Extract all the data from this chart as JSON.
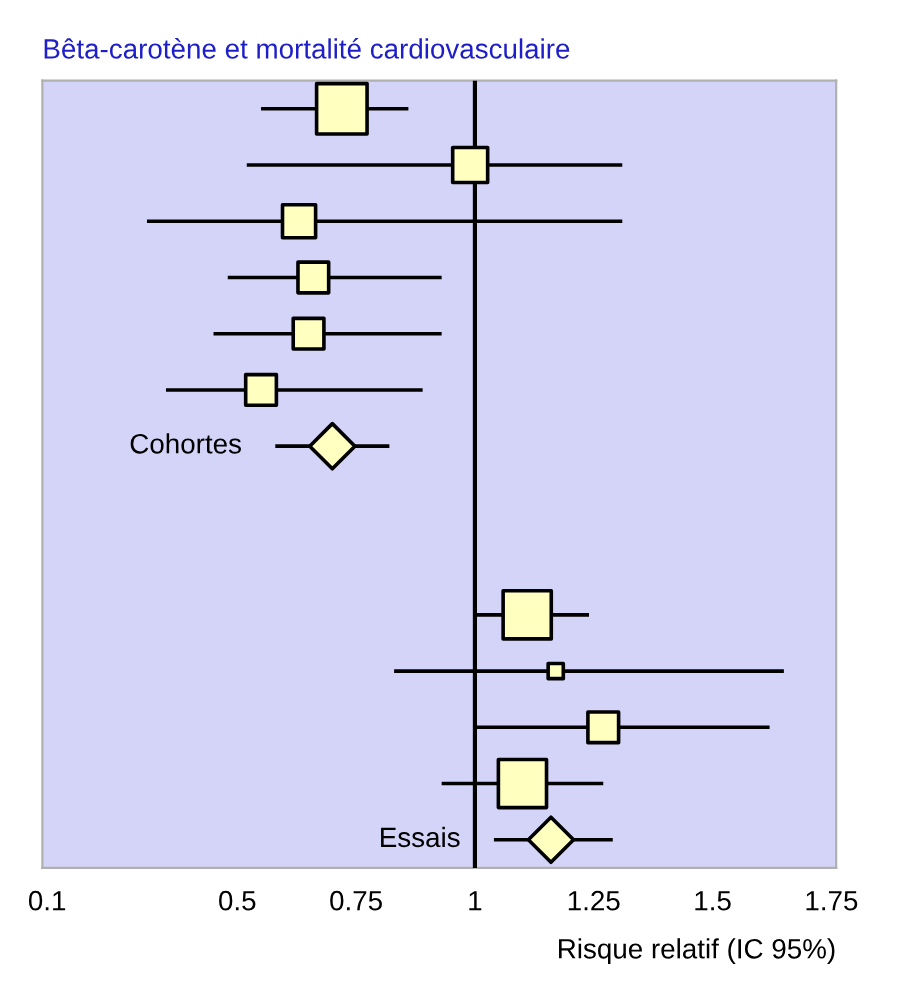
{
  "chart_data": {
    "type": "bubble",
    "orientation": "horizontal",
    "title": "Bêta-carotène et mortalité cardiovasculaire",
    "xlabel": "Risque relatif (IC 95%)",
    "categories": [
      null,
      null,
      null,
      null,
      null,
      null,
      null,
      null,
      null,
      null,
      null,
      null,
      null,
      null
    ],
    "series": [
      {
        "marker": "square",
        "color": "#ffffc0",
        "values": [
          0.72,
          0.99,
          0.63,
          0.66,
          0.65,
          0.55,
          null,
          null,
          null,
          1.11,
          1.17,
          1.27,
          1.1,
          null
        ],
        "sizes": [
          1,
          0.48,
          0.43,
          0.37,
          0.37,
          0.37,
          null,
          null,
          null,
          0.91,
          0.09,
          0.37,
          0.91,
          null
        ],
        "errors": [
          [
            0.55,
            0.86
          ],
          [
            0.52,
            1.31
          ],
          [
            0.31,
            1.31
          ],
          [
            0.48,
            0.93
          ],
          [
            0.45,
            0.93
          ],
          [
            0.35,
            0.89
          ],
          null,
          null,
          null,
          [
            1.0,
            1.24
          ],
          [
            0.83,
            1.65
          ],
          [
            1.0,
            1.62
          ],
          [
            0.93,
            1.27
          ],
          null
        ]
      },
      {
        "marker": "diamond",
        "name": "Cohortes",
        "color": "#ffffc0",
        "values": [
          null,
          null,
          null,
          null,
          null,
          null,
          0.7,
          null,
          null,
          null,
          null,
          null,
          null,
          null
        ],
        "sizes": [
          null,
          null,
          null,
          null,
          null,
          null,
          0.4,
          null,
          null,
          null,
          null,
          null,
          null,
          null
        ],
        "errors": [
          null,
          null,
          null,
          null,
          null,
          null,
          [
            0.58,
            0.82
          ],
          null,
          null,
          null,
          null,
          null,
          null,
          null
        ]
      },
      {
        "marker": "diamond",
        "name": "Essais",
        "color": "#ffffc0",
        "values": [
          null,
          null,
          null,
          null,
          null,
          null,
          null,
          null,
          null,
          null,
          null,
          null,
          null,
          1.16
        ],
        "sizes": [
          null,
          null,
          null,
          null,
          null,
          null,
          null,
          null,
          null,
          null,
          null,
          null,
          null,
          0.4
        ],
        "errors": [
          null,
          null,
          null,
          null,
          null,
          null,
          null,
          null,
          null,
          null,
          null,
          null,
          null,
          [
            1.04,
            1.29
          ]
        ]
      }
    ],
    "ref_lines": [
      {
        "axis": "x",
        "value": 1,
        "color": "#000000"
      }
    ],
    "xlim": [
      0.09,
      1.76
    ],
    "xticks": [
      0.1,
      0.5,
      0.75,
      1,
      1.25,
      1.5,
      1.75
    ],
    "tick_labels": "x"
  }
}
